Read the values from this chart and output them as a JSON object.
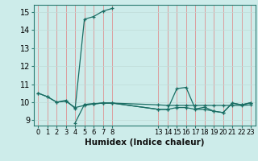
{
  "xlabel": "Humidex (Indice chaleur)",
  "ylabel": "",
  "bg_color": "#cdecea",
  "line_color": "#1a6e64",
  "grid_color": "#b0dcd8",
  "xlim": [
    -0.5,
    23.5
  ],
  "ylim": [
    8.7,
    15.4
  ],
  "xticks": [
    0,
    1,
    2,
    3,
    4,
    5,
    6,
    7,
    8,
    13,
    14,
    15,
    16,
    17,
    18,
    19,
    20,
    21,
    22,
    23
  ],
  "yticks": [
    9,
    10,
    11,
    12,
    13,
    14,
    15
  ],
  "series": [
    [
      [
        0,
        10.5
      ],
      [
        1,
        10.3
      ],
      [
        2,
        10.0
      ],
      [
        3,
        10.05
      ],
      [
        4,
        9.7
      ],
      [
        5,
        9.82
      ],
      [
        6,
        9.9
      ],
      [
        7,
        9.95
      ],
      [
        8,
        9.95
      ],
      [
        13,
        9.85
      ],
      [
        14,
        9.82
      ],
      [
        15,
        9.82
      ],
      [
        16,
        9.82
      ],
      [
        17,
        9.82
      ],
      [
        18,
        9.82
      ],
      [
        19,
        9.82
      ],
      [
        20,
        9.82
      ],
      [
        21,
        9.82
      ],
      [
        22,
        9.82
      ],
      [
        23,
        9.85
      ]
    ],
    [
      [
        0,
        10.5
      ],
      [
        1,
        10.3
      ],
      [
        2,
        10.0
      ],
      [
        3,
        10.1
      ],
      [
        4,
        9.65
      ],
      [
        5,
        14.6
      ],
      [
        6,
        14.75
      ],
      [
        7,
        15.05
      ],
      [
        8,
        15.2
      ]
    ],
    [
      [
        4,
        8.85
      ],
      [
        5,
        9.87
      ],
      [
        6,
        9.92
      ],
      [
        7,
        9.95
      ],
      [
        8,
        9.95
      ],
      [
        13,
        9.6
      ],
      [
        14,
        9.6
      ],
      [
        15,
        10.75
      ],
      [
        16,
        10.82
      ],
      [
        17,
        9.62
      ],
      [
        18,
        9.72
      ],
      [
        19,
        9.5
      ],
      [
        20,
        9.42
      ],
      [
        21,
        9.95
      ],
      [
        22,
        9.85
      ],
      [
        23,
        9.97
      ]
    ],
    [
      [
        5,
        9.87
      ],
      [
        6,
        9.9
      ],
      [
        7,
        9.95
      ],
      [
        8,
        9.95
      ],
      [
        13,
        9.6
      ],
      [
        14,
        9.6
      ],
      [
        15,
        9.7
      ],
      [
        16,
        9.7
      ],
      [
        17,
        9.6
      ],
      [
        18,
        9.6
      ],
      [
        19,
        9.5
      ],
      [
        20,
        9.42
      ],
      [
        21,
        9.95
      ],
      [
        22,
        9.85
      ],
      [
        23,
        9.97
      ]
    ]
  ]
}
